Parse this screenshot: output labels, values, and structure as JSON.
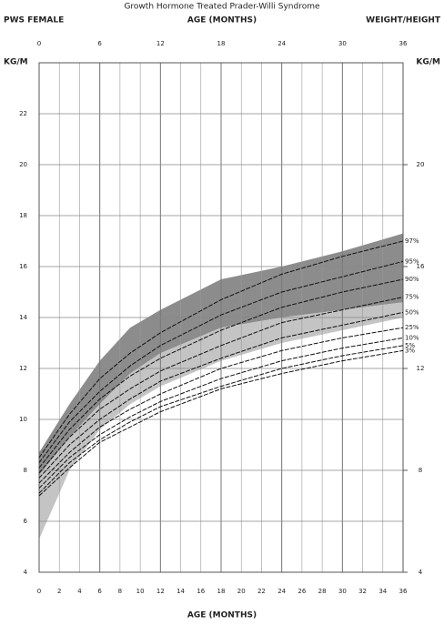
{
  "chart_data": {
    "type": "line",
    "title": "Growth Hormone Treated Prader-Willi Syndrome",
    "subtitle_left": "PWS FEMALE",
    "subtitle_right": "WEIGHT/HEIGHT",
    "xlabel": "AGE (MONTHS)",
    "ylabel": "KG/M",
    "x": [
      0,
      3,
      6,
      9,
      12,
      18,
      24,
      30,
      36
    ],
    "xlim": [
      0,
      36
    ],
    "xticks": [
      0,
      2,
      4,
      6,
      8,
      10,
      12,
      14,
      16,
      18,
      20,
      22,
      24,
      26,
      28,
      30,
      32,
      34,
      36
    ],
    "x2ticks": [
      0,
      6,
      12,
      18,
      24,
      30,
      36
    ],
    "ylim": [
      4,
      24
    ],
    "yticks": [
      4,
      6,
      8,
      10,
      12,
      14,
      16,
      18,
      20,
      22
    ],
    "y2lim": [
      4,
      24
    ],
    "y2ticks": [
      4,
      8,
      12,
      16,
      20
    ],
    "grid": true,
    "bands": [
      {
        "color": "#8c8c8c",
        "upper": [
          8.7,
          10.6,
          12.3,
          13.6,
          14.3,
          15.5,
          16.0,
          16.6,
          17.3
        ],
        "lower": [
          7.8,
          9.3,
          10.6,
          11.8,
          12.6,
          13.6,
          14.0,
          14.3,
          14.6
        ]
      },
      {
        "color": "#c4c4c4",
        "upper": [
          7.8,
          9.3,
          10.6,
          11.8,
          12.6,
          13.6,
          14.0,
          14.3,
          14.6
        ],
        "lower": [
          5.3,
          8.0,
          9.6,
          10.6,
          11.3,
          12.3,
          13.0,
          13.5,
          14.0
        ]
      }
    ],
    "series": [
      {
        "name": "97%",
        "color": "#111111",
        "values": [
          8.5,
          10.2,
          11.6,
          12.6,
          13.4,
          14.7,
          15.7,
          16.4,
          17.0
        ]
      },
      {
        "name": "95%",
        "color": "#111111",
        "values": [
          8.3,
          9.9,
          11.1,
          12.1,
          12.9,
          14.1,
          15.0,
          15.6,
          16.2
        ]
      },
      {
        "name": "90%",
        "color": "#111111",
        "values": [
          8.1,
          9.6,
          10.8,
          11.7,
          12.4,
          13.5,
          14.4,
          15.0,
          15.5
        ]
      },
      {
        "name": "75%",
        "color": "#111111",
        "values": [
          7.9,
          9.3,
          10.4,
          11.2,
          11.9,
          12.9,
          13.8,
          14.3,
          14.8
        ]
      },
      {
        "name": "50%",
        "color": "#111111",
        "values": [
          7.7,
          9.0,
          10.0,
          10.8,
          11.5,
          12.4,
          13.2,
          13.7,
          14.2
        ]
      },
      {
        "name": "25%",
        "color": "#111111",
        "values": [
          7.5,
          8.7,
          9.7,
          10.4,
          11.0,
          12.0,
          12.7,
          13.2,
          13.6
        ]
      },
      {
        "name": "10%",
        "color": "#111111",
        "values": [
          7.3,
          8.5,
          9.4,
          10.1,
          10.7,
          11.6,
          12.3,
          12.8,
          13.2
        ]
      },
      {
        "name": "5%",
        "color": "#111111",
        "values": [
          7.1,
          8.3,
          9.2,
          9.9,
          10.5,
          11.3,
          12.0,
          12.5,
          12.9
        ]
      },
      {
        "name": "3%",
        "color": "#111111",
        "values": [
          7.0,
          8.1,
          9.1,
          9.7,
          10.3,
          11.2,
          11.8,
          12.3,
          12.7
        ]
      }
    ]
  }
}
